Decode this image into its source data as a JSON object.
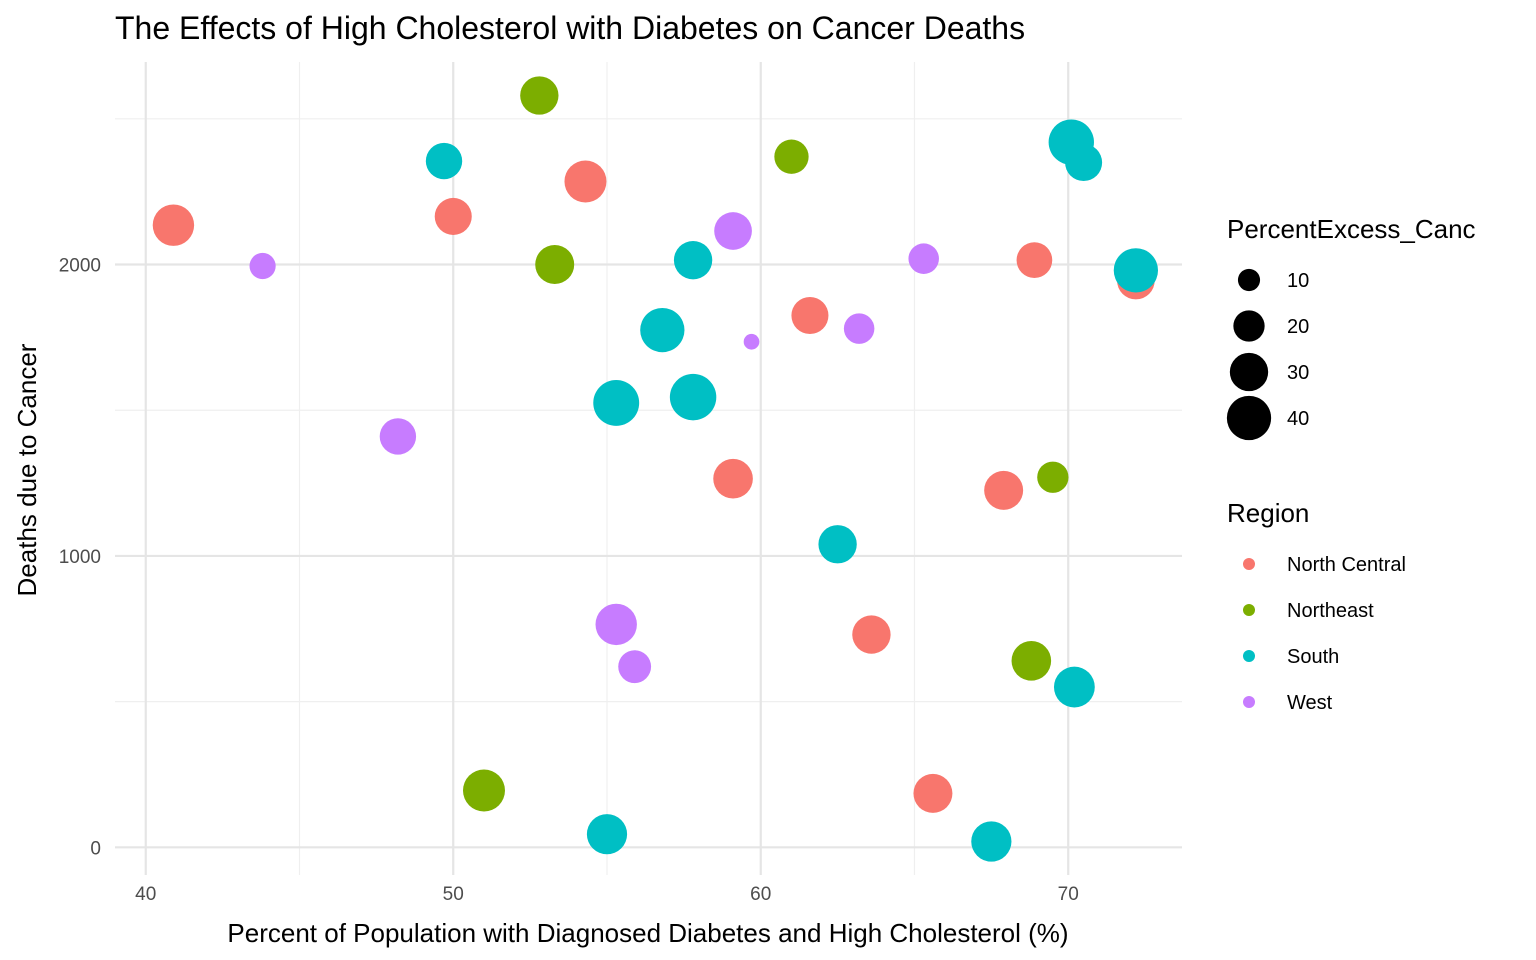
{
  "chart_data": {
    "type": "scatter",
    "title": "The Effects of High Cholesterol with Diabetes on Cancer Deaths",
    "xlabel": "Percent of Population with Diagnosed Diabetes and High Cholesterol (%)",
    "ylabel": "Deaths due to Cancer",
    "xlim": [
      39,
      73.7
    ],
    "ylim": [
      -95,
      2695
    ],
    "x_ticks": [
      40,
      50,
      60,
      70
    ],
    "y_ticks": [
      0,
      1000,
      2000
    ],
    "grid": true,
    "legend_position": "right",
    "size_legend": {
      "title": "PercentExcess_Canc",
      "entries": [
        {
          "label": "10",
          "value": 10
        },
        {
          "label": "20",
          "value": 20
        },
        {
          "label": "30",
          "value": 30
        },
        {
          "label": "40",
          "value": 40
        }
      ]
    },
    "color_legend": {
      "title": "Region",
      "entries": [
        {
          "name": "North Central",
          "color": "#F8766D"
        },
        {
          "name": "Northeast",
          "color": "#7CAE00"
        },
        {
          "name": "South",
          "color": "#00BFC4"
        },
        {
          "name": "West",
          "color": "#C77CFF"
        }
      ]
    },
    "series": [
      {
        "name": "North Central",
        "color": "#F8766D",
        "points": [
          {
            "x": 40.9,
            "y": 2135,
            "size": 35
          },
          {
            "x": 50.0,
            "y": 2165,
            "size": 28
          },
          {
            "x": 54.3,
            "y": 2285,
            "size": 36
          },
          {
            "x": 61.6,
            "y": 1825,
            "size": 28
          },
          {
            "x": 59.1,
            "y": 1265,
            "size": 32
          },
          {
            "x": 68.9,
            "y": 2015,
            "size": 26
          },
          {
            "x": 72.2,
            "y": 1945,
            "size": 29
          },
          {
            "x": 67.9,
            "y": 1225,
            "size": 31
          },
          {
            "x": 63.6,
            "y": 730,
            "size": 30
          },
          {
            "x": 65.6,
            "y": 185,
            "size": 31
          }
        ]
      },
      {
        "name": "Northeast",
        "color": "#7CAE00",
        "points": [
          {
            "x": 52.8,
            "y": 2580,
            "size": 30
          },
          {
            "x": 61.0,
            "y": 2370,
            "size": 24
          },
          {
            "x": 53.3,
            "y": 2000,
            "size": 31
          },
          {
            "x": 69.5,
            "y": 1270,
            "size": 20
          },
          {
            "x": 68.8,
            "y": 640,
            "size": 32
          },
          {
            "x": 51.0,
            "y": 195,
            "size": 36
          }
        ]
      },
      {
        "name": "South",
        "color": "#00BFC4",
        "points": [
          {
            "x": 49.7,
            "y": 2355,
            "size": 27
          },
          {
            "x": 70.1,
            "y": 2420,
            "size": 42
          },
          {
            "x": 70.5,
            "y": 2350,
            "size": 28
          },
          {
            "x": 57.8,
            "y": 2015,
            "size": 30
          },
          {
            "x": 72.2,
            "y": 1980,
            "size": 40
          },
          {
            "x": 56.8,
            "y": 1775,
            "size": 40
          },
          {
            "x": 55.3,
            "y": 1525,
            "size": 43
          },
          {
            "x": 57.8,
            "y": 1545,
            "size": 44
          },
          {
            "x": 62.5,
            "y": 1040,
            "size": 30
          },
          {
            "x": 70.2,
            "y": 550,
            "size": 34
          },
          {
            "x": 55.0,
            "y": 45,
            "size": 33
          },
          {
            "x": 67.5,
            "y": 20,
            "size": 33
          }
        ]
      },
      {
        "name": "West",
        "color": "#C77CFF",
        "points": [
          {
            "x": 43.8,
            "y": 1995,
            "size": 14
          },
          {
            "x": 59.1,
            "y": 2115,
            "size": 29
          },
          {
            "x": 65.3,
            "y": 2020,
            "size": 19
          },
          {
            "x": 63.2,
            "y": 1780,
            "size": 19
          },
          {
            "x": 59.7,
            "y": 1735,
            "size": 5
          },
          {
            "x": 48.2,
            "y": 1410,
            "size": 27
          },
          {
            "x": 55.3,
            "y": 765,
            "size": 35
          },
          {
            "x": 55.9,
            "y": 620,
            "size": 22
          }
        ]
      }
    ]
  }
}
